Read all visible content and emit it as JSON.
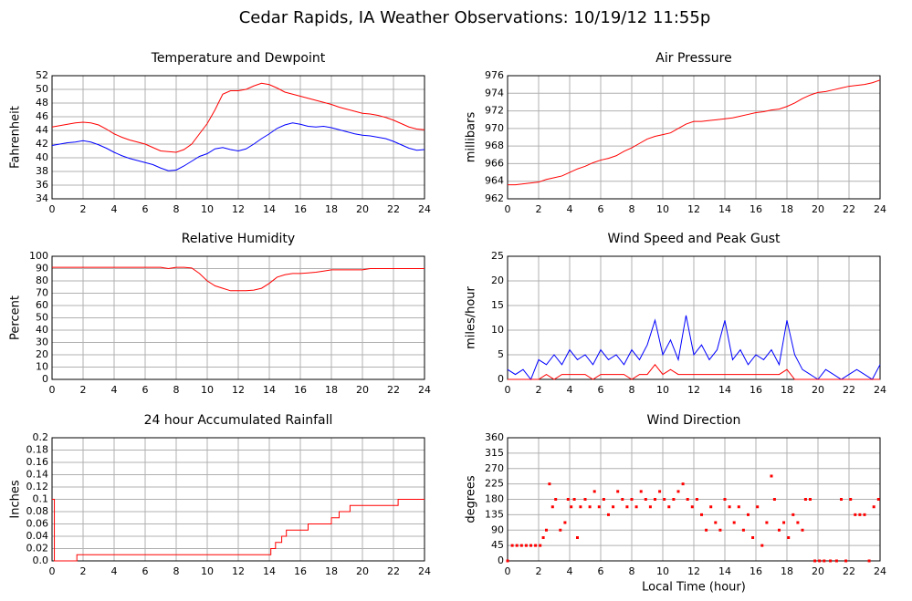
{
  "title": "Cedar Rapids, IA Weather Observations: 10/19/12 11:55p",
  "chart_data": [
    {
      "type": "line",
      "title": "Temperature and Dewpoint",
      "ylabel": "Fahrenheit",
      "xlim": [
        0,
        24
      ],
      "xticks": [
        0,
        2,
        4,
        6,
        8,
        10,
        12,
        14,
        16,
        18,
        20,
        22,
        24
      ],
      "ylim": [
        34,
        52
      ],
      "yticks": [
        34,
        36,
        38,
        40,
        42,
        44,
        46,
        48,
        50,
        52
      ],
      "grid": true,
      "x": [
        0,
        0.5,
        1,
        1.5,
        2,
        2.5,
        3,
        3.5,
        4,
        4.5,
        5,
        5.5,
        6,
        6.5,
        7,
        7.5,
        8,
        8.5,
        9,
        9.5,
        10,
        10.5,
        11,
        11.5,
        12,
        12.5,
        13,
        13.5,
        14,
        14.5,
        15,
        15.5,
        16,
        16.5,
        17,
        17.5,
        18,
        18.5,
        19,
        19.5,
        20,
        20.5,
        21,
        21.5,
        22,
        22.5,
        23,
        23.5,
        24
      ],
      "series": [
        {
          "color": "#ff0000",
          "values": [
            44.5,
            44.7,
            44.9,
            45.1,
            45.2,
            45.1,
            44.8,
            44.2,
            43.5,
            43,
            42.6,
            42.3,
            42,
            41.5,
            41,
            40.9,
            40.8,
            41.2,
            42,
            43.5,
            45,
            47,
            49.3,
            49.8,
            49.8,
            50,
            50.5,
            50.9,
            50.7,
            50.2,
            49.6,
            49.3,
            49,
            48.7,
            48.4,
            48.1,
            47.8,
            47.4,
            47.1,
            46.8,
            46.5,
            46.4,
            46.2,
            45.9,
            45.5,
            45,
            44.5,
            44.2,
            44.1
          ]
        },
        {
          "color": "#0000ff",
          "values": [
            41.8,
            42,
            42.2,
            42.3,
            42.5,
            42.3,
            41.9,
            41.4,
            40.8,
            40.3,
            39.9,
            39.6,
            39.3,
            39,
            38.5,
            38.1,
            38.2,
            38.8,
            39.5,
            40.2,
            40.6,
            41.3,
            41.5,
            41.2,
            41,
            41.3,
            42,
            42.8,
            43.5,
            44.3,
            44.8,
            45.1,
            44.9,
            44.6,
            44.5,
            44.6,
            44.4,
            44.1,
            43.8,
            43.5,
            43.3,
            43.2,
            43,
            42.8,
            42.4,
            41.9,
            41.4,
            41.1,
            41.2
          ]
        }
      ]
    },
    {
      "type": "line",
      "title": "Air Pressure",
      "ylabel": "millibars",
      "xlim": [
        0,
        24
      ],
      "xticks": [
        0,
        2,
        4,
        6,
        8,
        10,
        12,
        14,
        16,
        18,
        20,
        22,
        24
      ],
      "ylim": [
        962,
        976
      ],
      "yticks": [
        962,
        964,
        966,
        968,
        970,
        972,
        974,
        976
      ],
      "grid": true,
      "x": [
        0,
        0.5,
        1,
        1.5,
        2,
        2.5,
        3,
        3.5,
        4,
        4.5,
        5,
        5.5,
        6,
        6.5,
        7,
        7.5,
        8,
        8.5,
        9,
        9.5,
        10,
        10.5,
        11,
        11.5,
        12,
        12.5,
        13,
        13.5,
        14,
        14.5,
        15,
        15.5,
        16,
        16.5,
        17,
        17.5,
        18,
        18.5,
        19,
        19.5,
        20,
        20.5,
        21,
        21.5,
        22,
        22.5,
        23,
        23.5,
        24
      ],
      "series": [
        {
          "color": "#ff0000",
          "values": [
            963.6,
            963.6,
            963.7,
            963.8,
            963.9,
            964.2,
            964.4,
            964.6,
            965,
            965.4,
            965.7,
            966.1,
            966.4,
            966.6,
            966.9,
            967.4,
            967.8,
            968.3,
            968.8,
            969.1,
            969.3,
            969.5,
            970,
            970.5,
            970.8,
            970.8,
            970.9,
            971,
            971.1,
            971.2,
            971.4,
            971.6,
            971.8,
            971.9,
            972.1,
            972.2,
            972.5,
            972.9,
            973.4,
            973.8,
            974.1,
            974.2,
            974.4,
            974.6,
            974.8,
            974.9,
            975,
            975.2,
            975.5
          ]
        }
      ]
    },
    {
      "type": "line",
      "title": "Relative Humidity",
      "ylabel": "Percent",
      "xlim": [
        0,
        24
      ],
      "xticks": [
        0,
        2,
        4,
        6,
        8,
        10,
        12,
        14,
        16,
        18,
        20,
        22,
        24
      ],
      "ylim": [
        0,
        100
      ],
      "yticks": [
        0,
        10,
        20,
        30,
        40,
        50,
        60,
        70,
        80,
        90,
        100
      ],
      "grid": true,
      "x": [
        0,
        0.5,
        1,
        1.5,
        2,
        2.5,
        3,
        3.5,
        4,
        4.5,
        5,
        5.5,
        6,
        6.5,
        7,
        7.5,
        8,
        8.5,
        9,
        9.5,
        10,
        10.5,
        11,
        11.5,
        12,
        12.5,
        13,
        13.5,
        14,
        14.5,
        15,
        15.5,
        16,
        16.5,
        17,
        17.5,
        18,
        18.5,
        19,
        19.5,
        20,
        20.5,
        21,
        21.5,
        22,
        22.5,
        23,
        23.5,
        24
      ],
      "series": [
        {
          "color": "#ff0000",
          "values": [
            91,
            91,
            91,
            91,
            91,
            91,
            91,
            91,
            91,
            91,
            91,
            91,
            91,
            91,
            91,
            90,
            91,
            91,
            90.5,
            86,
            80,
            76,
            74,
            72,
            72,
            72,
            72.5,
            74,
            78,
            83,
            85,
            86,
            86,
            86.5,
            87,
            88,
            89,
            89,
            89,
            89,
            89,
            90,
            90,
            90,
            90,
            90,
            90,
            90,
            90
          ]
        }
      ]
    },
    {
      "type": "line",
      "title": "Wind Speed and Peak Gust",
      "ylabel": "miles/hour",
      "xlim": [
        0,
        24
      ],
      "xticks": [
        0,
        2,
        4,
        6,
        8,
        10,
        12,
        14,
        16,
        18,
        20,
        22,
        24
      ],
      "ylim": [
        0,
        25
      ],
      "yticks": [
        0,
        5,
        10,
        15,
        20,
        25
      ],
      "grid": true,
      "x": [
        0,
        0.5,
        1,
        1.5,
        2,
        2.5,
        3,
        3.5,
        4,
        4.5,
        5,
        5.5,
        6,
        6.5,
        7,
        7.5,
        8,
        8.5,
        9,
        9.5,
        10,
        10.5,
        11,
        11.5,
        12,
        12.5,
        13,
        13.5,
        14,
        14.5,
        15,
        15.5,
        16,
        16.5,
        17,
        17.5,
        18,
        18.5,
        19,
        19.5,
        20,
        20.5,
        21,
        21.5,
        22,
        22.5,
        23,
        23.5,
        24
      ],
      "series": [
        {
          "color": "#0000ff",
          "values": [
            2,
            1,
            2,
            0,
            4,
            3,
            5,
            3,
            6,
            4,
            5,
            3,
            6,
            4,
            5,
            3,
            6,
            4,
            7,
            12,
            5,
            8,
            4,
            13,
            5,
            7,
            4,
            6,
            12,
            4,
            6,
            3,
            5,
            4,
            6,
            3,
            12,
            5,
            2,
            1,
            0,
            2,
            1,
            0,
            1,
            2,
            1,
            0,
            3
          ]
        },
        {
          "color": "#ff0000",
          "values": [
            0,
            0,
            0,
            0,
            0,
            1,
            0,
            1,
            1,
            1,
            1,
            0,
            1,
            1,
            1,
            1,
            0,
            1,
            1,
            3,
            1,
            2,
            1,
            1,
            1,
            1,
            1,
            1,
            1,
            1,
            1,
            1,
            1,
            1,
            1,
            1,
            2,
            0,
            0,
            0,
            0,
            0,
            0,
            0,
            0,
            0,
            0,
            0,
            0
          ]
        }
      ]
    },
    {
      "type": "line",
      "title": "24 hour Accumulated Rainfall",
      "ylabel": "Inches",
      "step": true,
      "xlim": [
        0,
        24
      ],
      "xticks": [
        0,
        2,
        4,
        6,
        8,
        10,
        12,
        14,
        16,
        18,
        20,
        22,
        24
      ],
      "ylim": [
        0,
        0.2
      ],
      "yticks": [
        {
          "value": 0,
          "label": "0.0"
        },
        0.02,
        0.04,
        0.06,
        0.08,
        0.1,
        0.12,
        0.14,
        0.16,
        0.18,
        0.2
      ],
      "grid": true,
      "x": [
        0,
        0.15,
        1.6,
        14.1,
        14.4,
        14.8,
        15.1,
        16.5,
        18,
        18.5,
        19.2,
        22.3,
        24
      ],
      "series": [
        {
          "color": "#ff0000",
          "values": [
            0.1,
            0,
            0.01,
            0.02,
            0.03,
            0.04,
            0.05,
            0.06,
            0.07,
            0.08,
            0.09,
            0.1,
            0.1
          ]
        }
      ]
    },
    {
      "type": "scatter",
      "title": "Wind Direction",
      "ylabel": "degrees",
      "xlabel": "Local Time (hour)",
      "xlim": [
        0,
        24
      ],
      "xticks": [
        0,
        2,
        4,
        6,
        8,
        10,
        12,
        14,
        16,
        18,
        20,
        22,
        24
      ],
      "ylim": [
        0,
        360
      ],
      "yticks": [
        0,
        45,
        90,
        135,
        180,
        225,
        270,
        315,
        360
      ],
      "grid": true,
      "x": [
        0,
        0.3,
        0.6,
        0.9,
        1.2,
        1.5,
        1.8,
        2.1,
        2.3,
        2.5,
        2.7,
        2.9,
        3.1,
        3.4,
        3.7,
        3.9,
        4.1,
        4.3,
        4.5,
        4.7,
        5,
        5.3,
        5.6,
        5.9,
        6.2,
        6.5,
        6.8,
        7.1,
        7.4,
        7.7,
        8,
        8.3,
        8.6,
        8.9,
        9.2,
        9.5,
        9.8,
        10.1,
        10.4,
        10.7,
        11,
        11.3,
        11.6,
        11.9,
        12.2,
        12.5,
        12.8,
        13.1,
        13.4,
        13.7,
        14,
        14.3,
        14.6,
        14.9,
        15.2,
        15.5,
        15.8,
        16.1,
        16.4,
        16.7,
        17,
        17.2,
        17.5,
        17.8,
        18.1,
        18.4,
        18.7,
        19,
        19.2,
        19.5,
        19.8,
        20.1,
        20.4,
        20.8,
        21.2,
        21.5,
        21.8,
        22.1,
        22.4,
        22.7,
        23,
        23.3,
        23.6,
        23.9
      ],
      "series": [
        {
          "color": "#ff0000",
          "values": [
            0,
            45,
            45,
            45,
            45,
            45,
            45,
            45,
            68,
            90,
            225,
            158,
            180,
            90,
            112,
            180,
            158,
            180,
            68,
            158,
            180,
            158,
            203,
            158,
            180,
            135,
            158,
            203,
            180,
            158,
            180,
            158,
            203,
            180,
            158,
            180,
            203,
            180,
            158,
            180,
            203,
            225,
            180,
            158,
            180,
            135,
            90,
            158,
            112,
            90,
            180,
            158,
            112,
            158,
            90,
            135,
            68,
            158,
            45,
            112,
            248,
            180,
            90,
            112,
            68,
            135,
            112,
            90,
            180,
            180,
            0,
            0,
            0,
            0,
            0,
            180,
            0,
            180,
            135,
            135,
            135,
            0,
            158,
            180
          ]
        }
      ]
    }
  ]
}
